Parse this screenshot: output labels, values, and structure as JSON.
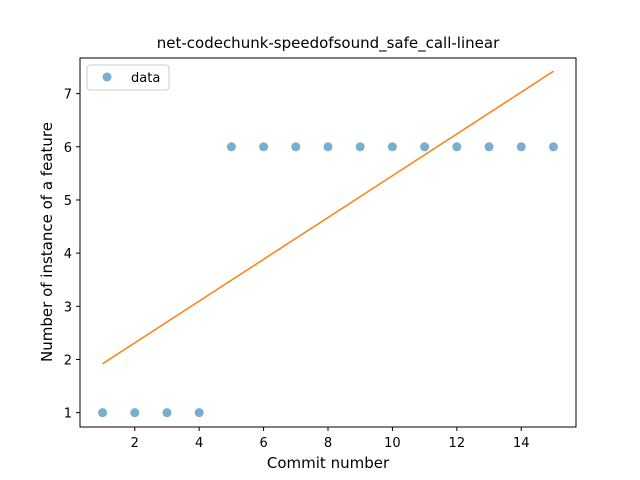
{
  "chart_data": {
    "type": "scatter",
    "title": "net-codechunk-speedofsound_safe_call-linear",
    "xlabel": "Commit number",
    "ylabel": "Number of instance of a feature",
    "xlim": [
      0.3,
      15.7
    ],
    "ylim": [
      0.73,
      7.67
    ],
    "xticks": [
      2,
      4,
      6,
      8,
      10,
      12,
      14
    ],
    "yticks": [
      1,
      2,
      3,
      4,
      5,
      6,
      7
    ],
    "grid": false,
    "legend_position": "upper-left",
    "series": [
      {
        "name": "data",
        "kind": "points",
        "color": "#1f77b4",
        "x": [
          1,
          2,
          3,
          4,
          5,
          6,
          7,
          8,
          9,
          10,
          11,
          12,
          13,
          14,
          15
        ],
        "y": [
          1,
          1,
          1,
          1,
          6,
          6,
          6,
          6,
          6,
          6,
          6,
          6,
          6,
          6,
          6
        ]
      },
      {
        "kind": "line",
        "color": "#ff7f0e",
        "x": [
          1,
          15
        ],
        "y": [
          1.92,
          7.42
        ]
      }
    ]
  }
}
